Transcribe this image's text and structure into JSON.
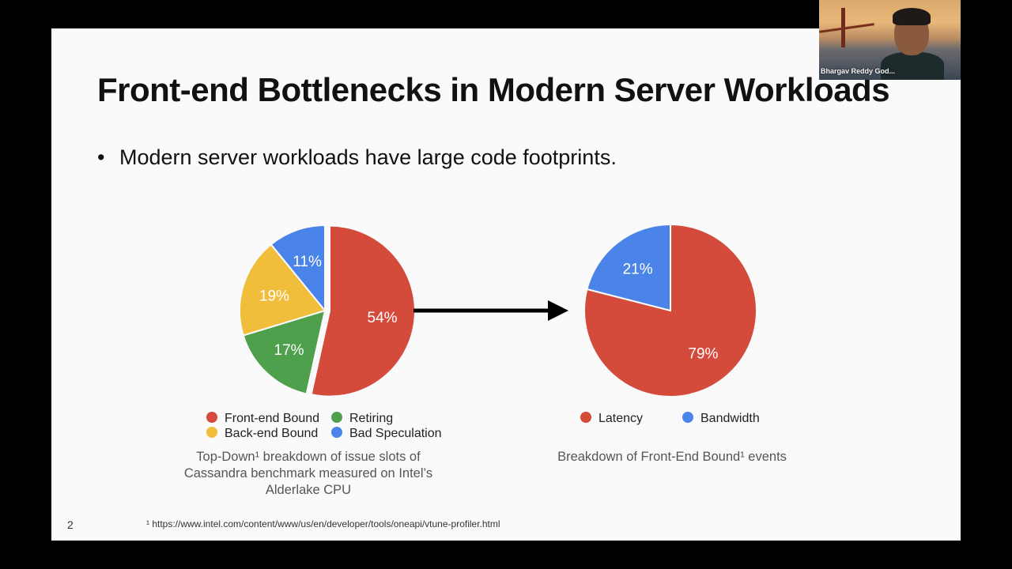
{
  "slide": {
    "title": "Front-end Bottlenecks in Modern Server Workloads",
    "bullet": "Modern server workloads have large code footprints.",
    "bullet_marker": "•",
    "page_number": "2",
    "footnote": "¹ https://www.intel.com/content/www/us/en/developer/tools/oneapi/vtune-profiler.html"
  },
  "webcam": {
    "participant_name": "Bhargav Reddy God..."
  },
  "chart_data": [
    {
      "type": "pie",
      "caption": "Top-Down¹ breakdown of issue slots of Cassandra benchmark measured on Intel’s Alderlake CPU",
      "slices": [
        {
          "name": "Front-end Bound",
          "value": 54,
          "label": "54%",
          "color": "#d54b3b",
          "exploded": true
        },
        {
          "name": "Retiring",
          "value": 17,
          "label": "17%",
          "color": "#4fa04c"
        },
        {
          "name": "Back-end Bound",
          "value": 19,
          "label": "19%",
          "color": "#f1be3b"
        },
        {
          "name": "Bad Speculation",
          "value": 11,
          "label": "11%",
          "color": "#4a84e8"
        }
      ],
      "legend": [
        "Front-end Bound",
        "Retiring",
        "Back-end Bound",
        "Bad Speculation"
      ]
    },
    {
      "type": "pie",
      "caption": "Breakdown of Front-End Bound¹ events",
      "slices": [
        {
          "name": "Latency",
          "value": 79,
          "label": "79%",
          "color": "#d54b3b"
        },
        {
          "name": "Bandwidth",
          "value": 21,
          "label": "21%",
          "color": "#4a84e8"
        }
      ],
      "legend": [
        "Latency",
        "Bandwidth"
      ]
    }
  ]
}
